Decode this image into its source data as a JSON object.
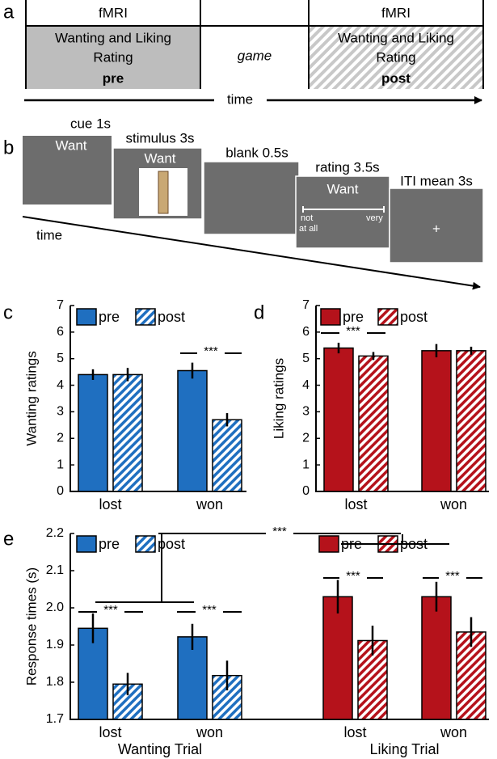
{
  "panel_a": {
    "label": "a",
    "header_left": "fMRI",
    "header_right": "fMRI",
    "pre_box": [
      "Wanting and Liking",
      "Rating",
      "pre"
    ],
    "middle": "game",
    "post_box": [
      "Wanting and Liking",
      "Rating",
      "post"
    ],
    "axis": "time"
  },
  "panel_b": {
    "label": "b",
    "screens": [
      {
        "name": "cue 1s",
        "text": "Want"
      },
      {
        "name": "stimulus 3s",
        "text": "Want"
      },
      {
        "name": "blank 0.5s"
      },
      {
        "name": "rating 3.5s",
        "text": "Want",
        "scale_low": [
          "not",
          "at all"
        ],
        "scale_high": "very"
      },
      {
        "name": "ITI mean 3s",
        "text": "+"
      }
    ],
    "axis": "time"
  },
  "chart_data": [
    {
      "type": "bar",
      "panel_label": "c",
      "ylabel": "Wanting ratings",
      "categories": [
        "lost",
        "won"
      ],
      "ylim": [
        0,
        7
      ],
      "yticks": [
        0,
        1,
        2,
        3,
        4,
        5,
        6,
        7
      ],
      "series": [
        {
          "name": "pre",
          "color": "#1f6fc0",
          "hatch": false,
          "values": [
            4.4,
            4.55
          ],
          "errors": [
            0.2,
            0.3
          ]
        },
        {
          "name": "post",
          "color": "#1f6fc0",
          "hatch": true,
          "values": [
            4.4,
            2.7
          ],
          "errors": [
            0.25,
            0.25
          ]
        }
      ],
      "annotations": [
        "***"
      ]
    },
    {
      "type": "bar",
      "panel_label": "d",
      "ylabel": "Liking ratings",
      "categories": [
        "lost",
        "won"
      ],
      "ylim": [
        0,
        7
      ],
      "yticks": [
        0,
        1,
        2,
        3,
        4,
        5,
        6,
        7
      ],
      "series": [
        {
          "name": "pre",
          "color": "#b5121b",
          "hatch": false,
          "values": [
            5.4,
            5.3
          ],
          "errors": [
            0.2,
            0.25
          ]
        },
        {
          "name": "post",
          "color": "#b5121b",
          "hatch": true,
          "values": [
            5.1,
            5.3
          ],
          "errors": [
            0.15,
            0.15
          ]
        }
      ],
      "annotations": [
        "***"
      ]
    },
    {
      "type": "bar",
      "panel_label": "e",
      "ylabel": "Response times (s)",
      "categories": [
        "lost",
        "won",
        "lost",
        "won"
      ],
      "groups": [
        "Wanting Trial",
        "Liking Trial"
      ],
      "ylim": [
        1.7,
        2.2
      ],
      "yticks": [
        1.7,
        1.8,
        1.9,
        {
          "value": 2,
          "label": "2.0"
        },
        2.1,
        2.2
      ],
      "series": [
        {
          "name": "pre",
          "color": "#1f6fc0",
          "hatch": false,
          "values": [
            1.945,
            1.922,
            null,
            null
          ],
          "errors": [
            0.04,
            0.035,
            null,
            null
          ]
        },
        {
          "name": "post",
          "color": "#1f6fc0",
          "hatch": true,
          "values": [
            1.795,
            1.818,
            null,
            null
          ],
          "errors": [
            0.03,
            0.04,
            null,
            null
          ]
        },
        {
          "name": "pre",
          "color": "#b5121b",
          "hatch": false,
          "values": [
            null,
            null,
            2.03,
            2.03
          ],
          "errors": [
            null,
            null,
            0.045,
            0.04
          ]
        },
        {
          "name": "post",
          "color": "#b5121b",
          "hatch": true,
          "values": [
            null,
            null,
            1.912,
            1.935
          ],
          "errors": [
            null,
            null,
            0.04,
            0.04
          ]
        }
      ],
      "annotations": [
        "***",
        "***",
        "***",
        "***",
        "***"
      ]
    }
  ]
}
